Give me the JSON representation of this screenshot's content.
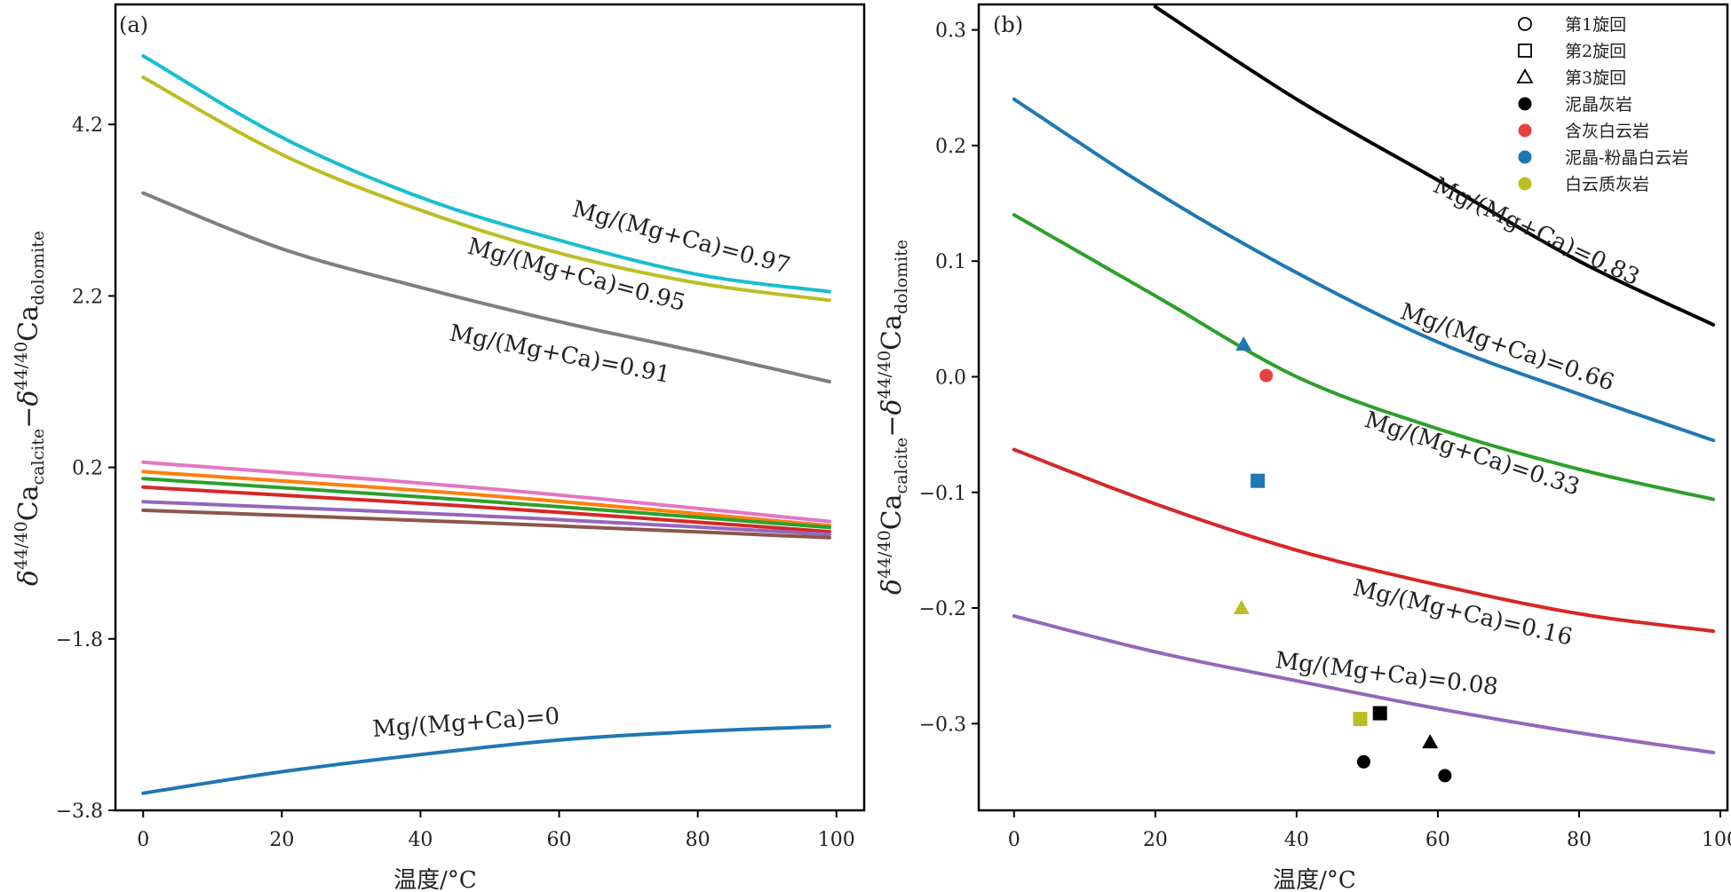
{
  "chart_data": [
    {
      "type": "line",
      "panel_label": "(a)",
      "xlabel": "温度/°C",
      "ylabel": "δ44/40Ca_calcite − δ44/40Ca_dolomite",
      "xlim": [
        -4,
        104
      ],
      "ylim": [
        -3.8,
        5.6
      ],
      "xticks": [
        0,
        20,
        40,
        60,
        80,
        100
      ],
      "yticks": [
        -3.8,
        -1.8,
        0.2,
        2.2,
        4.2
      ],
      "ytick_labels": [
        "−3.8",
        "−1.8",
        "0.2",
        "2.2",
        "4.2"
      ],
      "series": [
        {
          "name": "Mg/(Mg+Ca)=0.97",
          "color": "#17becf",
          "x": [
            0,
            20,
            40,
            60,
            80,
            99
          ],
          "y": [
            5.0,
            4.05,
            3.35,
            2.85,
            2.45,
            2.25
          ]
        },
        {
          "name": "Mg/(Mg+Ca)=0.95",
          "color": "#bcbd22",
          "x": [
            0,
            20,
            40,
            60,
            80,
            99
          ],
          "y": [
            4.75,
            3.85,
            3.2,
            2.7,
            2.35,
            2.15
          ]
        },
        {
          "name": "Mg/(Mg+Ca)=0.91",
          "color": "#7f7f7f",
          "x": [
            0,
            20,
            40,
            60,
            80,
            99
          ],
          "y": [
            3.4,
            2.75,
            2.3,
            1.9,
            1.55,
            1.2
          ]
        },
        {
          "color": "#e377c2",
          "x": [
            0,
            50,
            99
          ],
          "y": [
            0.26,
            -0.05,
            -0.43
          ]
        },
        {
          "color": "#ff7f0e",
          "x": [
            0,
            50,
            99
          ],
          "y": [
            0.15,
            -0.13,
            -0.48
          ]
        },
        {
          "color": "#2ca02c",
          "x": [
            0,
            50,
            99
          ],
          "y": [
            0.07,
            -0.2,
            -0.5
          ]
        },
        {
          "color": "#d62728",
          "x": [
            0,
            50,
            99
          ],
          "y": [
            -0.03,
            -0.27,
            -0.55
          ]
        },
        {
          "color": "#9467bd",
          "x": [
            0,
            50,
            99
          ],
          "y": [
            -0.2,
            -0.37,
            -0.58
          ]
        },
        {
          "color": "#8c564b",
          "x": [
            0,
            50,
            99
          ],
          "y": [
            -0.3,
            -0.45,
            -0.62
          ]
        },
        {
          "name": "Mg/(Mg+Ca)=0",
          "color": "#1f77b4",
          "x": [
            0,
            20,
            40,
            60,
            80,
            99
          ],
          "y": [
            -3.6,
            -3.35,
            -3.15,
            -2.98,
            -2.88,
            -2.82
          ]
        }
      ]
    },
    {
      "type": "line",
      "panel_label": "(b)",
      "xlabel": "温度/°C",
      "ylabel": "δ44/40Ca_calcite − δ44/40Ca_dolomite",
      "xlim": [
        -5,
        101
      ],
      "ylim": [
        -0.375,
        0.322
      ],
      "xticks": [
        0,
        20,
        40,
        60,
        80,
        100
      ],
      "yticks": [
        -0.3,
        -0.2,
        -0.1,
        0.0,
        0.1,
        0.2,
        0.3
      ],
      "ytick_labels": [
        "−0.3",
        "−0.2",
        "−0.1",
        "0.0",
        "0.1",
        "0.2",
        "0.3"
      ],
      "series": [
        {
          "name": "Mg/(Mg+Ca)=0.83",
          "color": "#000000",
          "x": [
            20,
            40,
            60,
            80,
            99
          ],
          "y": [
            0.32,
            0.24,
            0.17,
            0.1,
            0.045
          ]
        },
        {
          "name": "Mg/(Mg+Ca)=0.66",
          "color": "#1f77b4",
          "x": [
            0,
            20,
            40,
            60,
            80,
            99
          ],
          "y": [
            0.24,
            0.16,
            0.09,
            0.03,
            -0.015,
            -0.055
          ]
        },
        {
          "name": "Mg/(Mg+Ca)=0.33",
          "color": "#2ca02c",
          "x": [
            0,
            20,
            40,
            60,
            80,
            99
          ],
          "y": [
            0.14,
            0.07,
            0.0,
            -0.045,
            -0.08,
            -0.106
          ]
        },
        {
          "name": "Mg/(Mg+Ca)=0.16",
          "color": "#d62728",
          "x": [
            0,
            20,
            40,
            60,
            80,
            99
          ],
          "y": [
            -0.063,
            -0.11,
            -0.15,
            -0.18,
            -0.205,
            -0.22
          ]
        },
        {
          "name": "Mg/(Mg+Ca)=0.08",
          "color": "#9467bd",
          "x": [
            0,
            20,
            40,
            60,
            80,
            99
          ],
          "y": [
            -0.207,
            -0.238,
            -0.263,
            -0.287,
            -0.308,
            -0.325
          ]
        }
      ],
      "points": [
        {
          "x": 32.5,
          "y": 0.028,
          "shape": "triangle",
          "color": "#1f77b4"
        },
        {
          "x": 35.7,
          "y": 0.001,
          "shape": "circle",
          "color": "#e84040"
        },
        {
          "x": 34.5,
          "y": -0.09,
          "shape": "square",
          "color": "#1f77b4"
        },
        {
          "x": 32.2,
          "y": -0.2,
          "shape": "triangle",
          "color": "#bcbd22"
        },
        {
          "x": 49.0,
          "y": -0.296,
          "shape": "square",
          "color": "#bcbd22"
        },
        {
          "x": 51.8,
          "y": -0.291,
          "shape": "square",
          "color": "#000000"
        },
        {
          "x": 58.9,
          "y": -0.316,
          "shape": "triangle",
          "color": "#000000"
        },
        {
          "x": 49.5,
          "y": -0.333,
          "shape": "circle",
          "color": "#000000"
        },
        {
          "x": 61.0,
          "y": -0.345,
          "shape": "circle",
          "color": "#000000"
        }
      ],
      "legend": {
        "position": "top-right",
        "entries": [
          {
            "label": "第1旋回",
            "marker": "circle-open",
            "color": "#000000"
          },
          {
            "label": "第2旋回",
            "marker": "square-open",
            "color": "#000000"
          },
          {
            "label": "第3旋回",
            "marker": "triangle-open",
            "color": "#000000"
          },
          {
            "label": "泥晶灰岩",
            "marker": "circle",
            "color": "#000000"
          },
          {
            "label": "含灰白云岩",
            "marker": "circle",
            "color": "#e84040"
          },
          {
            "label": "泥晶-粉晶白云岩",
            "marker": "circle",
            "color": "#1f77b4"
          },
          {
            "label": "白云质灰岩",
            "marker": "circle",
            "color": "#bcbd22"
          }
        ]
      }
    }
  ],
  "ylabel_parts": {
    "delta": "δ",
    "sup": "44/40",
    "ca": "Ca",
    "sub1": "calcite",
    "minus": "−",
    "sub2": "dolomite"
  }
}
